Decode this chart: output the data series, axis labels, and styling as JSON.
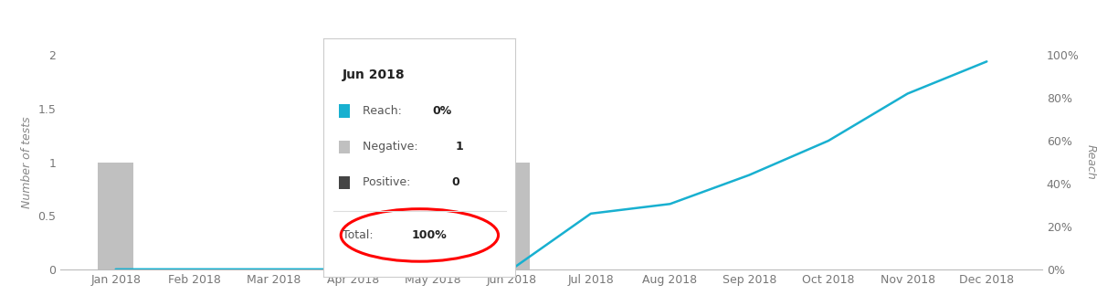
{
  "all_months": [
    "Jan 2018",
    "Feb 2018",
    "Mar 2018",
    "Apr 2018",
    "May 2018",
    "Jun 2018",
    "Jul 2018",
    "Aug 2018",
    "Sep 2018",
    "Oct 2018",
    "Nov 2018",
    "Dec 2018"
  ],
  "bar_negative_values": [
    1,
    0,
    0,
    0,
    0,
    1,
    0,
    0,
    0,
    0,
    0,
    0
  ],
  "bar_positive_values": [
    0,
    0,
    0,
    0,
    0,
    0,
    0,
    0,
    0,
    0,
    0,
    0
  ],
  "reach_x": [
    0,
    1,
    2,
    3,
    4,
    5,
    6,
    7,
    8,
    9,
    10,
    11
  ],
  "reach_y": [
    0.0,
    0.0,
    0.0,
    0.0,
    0.0,
    0.0,
    0.26,
    0.305,
    0.44,
    0.6,
    0.82,
    0.97
  ],
  "color_positive": "#444444",
  "color_negative": "#c0c0c0",
  "color_reach": "#18b0d0",
  "color_bg": "#ffffff",
  "ylabel_left": "Number of tests",
  "ylabel_right": "Reach",
  "ylim_left": [
    0,
    2
  ],
  "ylim_right": [
    0,
    1
  ],
  "yticks_left": [
    0,
    0.5,
    1,
    1.5,
    2
  ],
  "yticks_right": [
    0.0,
    0.2,
    0.4,
    0.6,
    0.8,
    1.0
  ],
  "tooltip_title": "Jun 2018",
  "tooltip_reach": "0%",
  "tooltip_negative": "1",
  "tooltip_positive": "0",
  "tooltip_total": "100%",
  "bar_width": 0.45
}
